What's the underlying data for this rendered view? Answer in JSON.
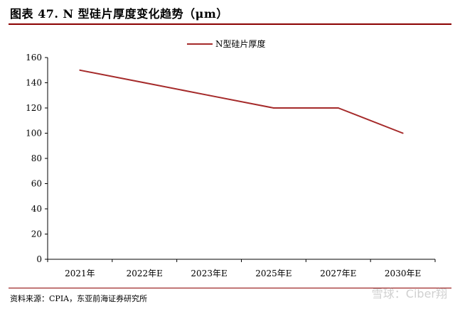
{
  "title": "图表 47. N 型硅片厚度变化趋势（μm）",
  "source": "资料来源：CPIA，东亚前海证券研究所",
  "watermark": "雪球：Ciber翔",
  "colors": {
    "rule": "#8b0000",
    "series": "#a52a2a"
  },
  "chart_data": {
    "type": "line",
    "categories": [
      "2021年",
      "2022年E",
      "2023年E",
      "2025年E",
      "2027年E",
      "2030年E"
    ],
    "series": [
      {
        "name": "N型硅片厚度",
        "values": [
          150,
          140,
          130,
          120,
          120,
          100
        ]
      }
    ],
    "ylim": [
      0,
      160
    ],
    "yticks": [
      0,
      20,
      40,
      60,
      80,
      100,
      120,
      140,
      160
    ],
    "xlabel": "",
    "ylabel": "",
    "legend": "top-center",
    "grid": false
  }
}
